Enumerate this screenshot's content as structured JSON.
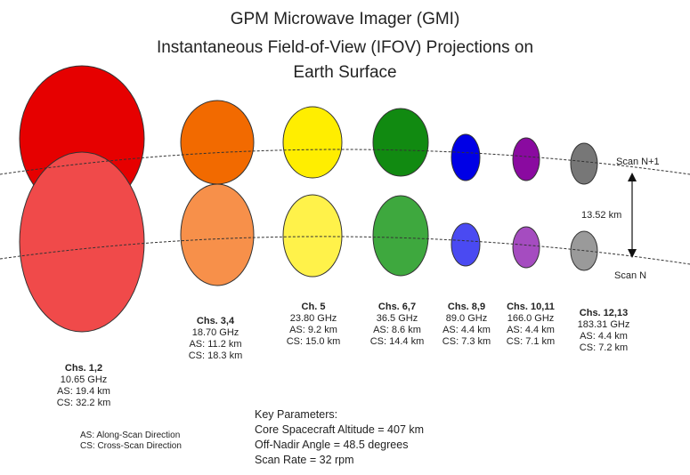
{
  "title": {
    "line1": "GPM Microwave Imager (GMI)",
    "line2": "Instantaneous Field-of-View (IFOV) Projections on",
    "line3": "Earth Surface"
  },
  "scan_labels": {
    "upper": "Scan N+1",
    "lower": "Scan N"
  },
  "separation_label": "13.52 km",
  "channels": [
    {
      "name": "Chs. 1,2",
      "freq": "10.65 GHz",
      "as": "AS: 19.4 km",
      "cs": "CS: 32.2 km",
      "color_upper": "#e60000",
      "color_lower": "#f04a4a"
    },
    {
      "name": "Chs. 3,4",
      "freq": "18.70 GHz",
      "as": "AS: 11.2 km",
      "cs": "CS: 18.3 km",
      "color_upper": "#f26a00",
      "color_lower": "#f7904a"
    },
    {
      "name": "Ch. 5",
      "freq": "23.80 GHz",
      "as": "AS: 9.2 km",
      "cs": "CS: 15.0 km",
      "color_upper": "#ffee00",
      "color_lower": "#fff24a"
    },
    {
      "name": "Chs. 6,7",
      "freq": "36.5 GHz",
      "as": "AS: 8.6 km",
      "cs": "CS: 14.4 km",
      "color_upper": "#118a11",
      "color_lower": "#3ea83e"
    },
    {
      "name": "Chs. 8,9",
      "freq": "89.0 GHz",
      "as": "AS: 4.4 km",
      "cs": "CS: 7.3 km",
      "color_upper": "#0000e6",
      "color_lower": "#4a4af2"
    },
    {
      "name": "Chs. 10,11",
      "freq": "166.0 GHz",
      "as": "AS: 4.4 km",
      "cs": "CS: 7.1 km",
      "color_upper": "#8a0aa0",
      "color_lower": "#a54cc0"
    },
    {
      "name": "Chs. 12,13",
      "freq": "183.31 GHz",
      "as": "AS: 4.4 km",
      "cs": "CS: 7.2 km",
      "color_upper": "#777777",
      "color_lower": "#9a9a9a"
    }
  ],
  "legend": {
    "as": "AS:  Along-Scan Direction",
    "cs": "CS:  Cross-Scan Direction"
  },
  "key_parameters": {
    "heading": "Key Parameters:",
    "altitude": "Core Spacecraft Altitude = 407 km",
    "off_nadir": "Off-Nadir Angle = 48.5 degrees",
    "scan_rate": "Scan Rate = 32 rpm"
  }
}
